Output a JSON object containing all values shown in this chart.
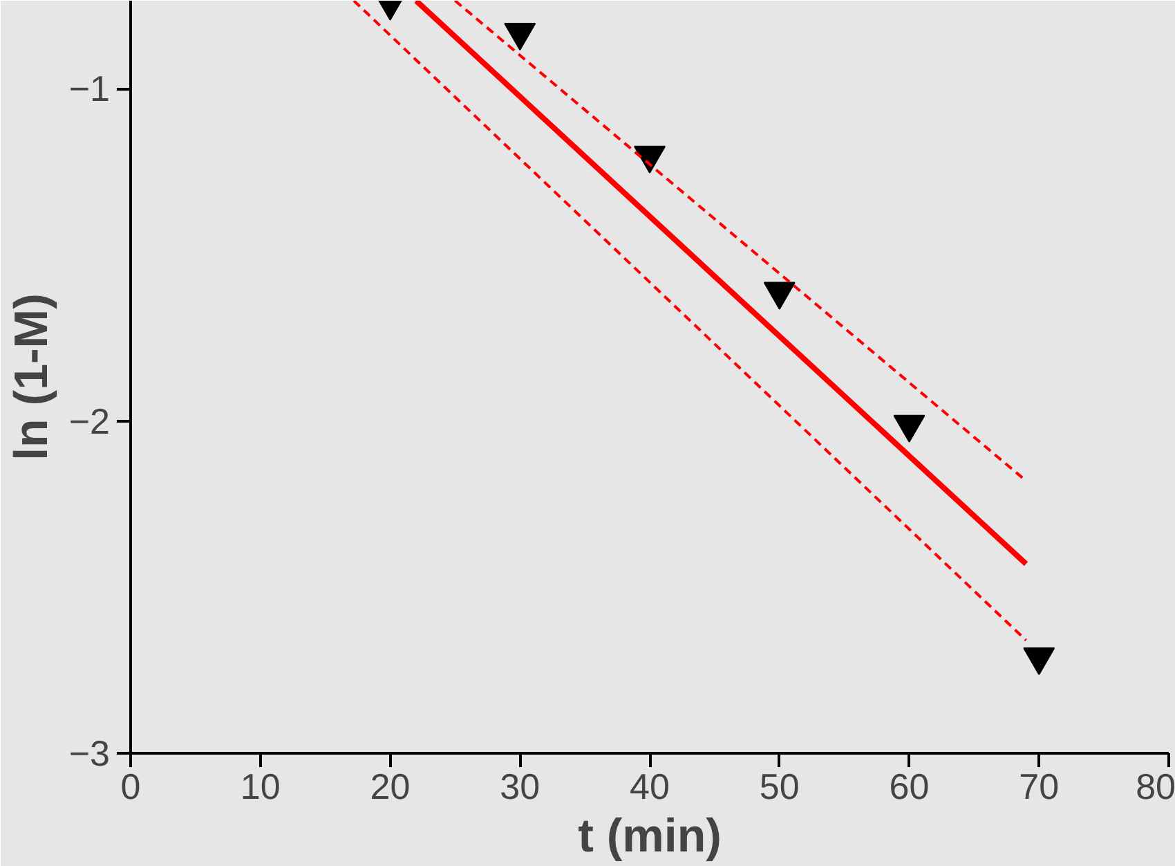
{
  "chart_data": {
    "type": "scatter",
    "xlabel": "t (min)",
    "ylabel": "ln (1-M)",
    "xlim": [
      0,
      80
    ],
    "ylim": [
      -3,
      -0.735
    ],
    "xticks": [
      0,
      10,
      20,
      30,
      40,
      50,
      60,
      70,
      80
    ],
    "yticks": [
      -3,
      -2,
      -1
    ],
    "series": [
      {
        "marker": "triangle",
        "color": "#000000",
        "x": [
          20,
          30,
          40,
          50,
          60,
          70
        ],
        "values": [
          -0.74,
          -0.83,
          -1.2,
          -1.61,
          -2.01,
          -2.71
        ]
      },
      {
        "type": "line",
        "color": "#ff0000",
        "line_style": "solid",
        "marker": "none",
        "x": [
          22,
          69
        ],
        "values": [
          -0.735,
          -2.43
        ]
      },
      {
        "type": "line",
        "color": "#ff0000",
        "line_style": "dashed",
        "marker": "none",
        "x": [
          25,
          69
        ],
        "values": [
          -0.735,
          -2.18
        ]
      },
      {
        "type": "line",
        "color": "#ff0000",
        "line_style": "dashed",
        "marker": "none",
        "x": [
          17.2,
          69
        ],
        "values": [
          -0.735,
          -2.66
        ]
      }
    ]
  }
}
